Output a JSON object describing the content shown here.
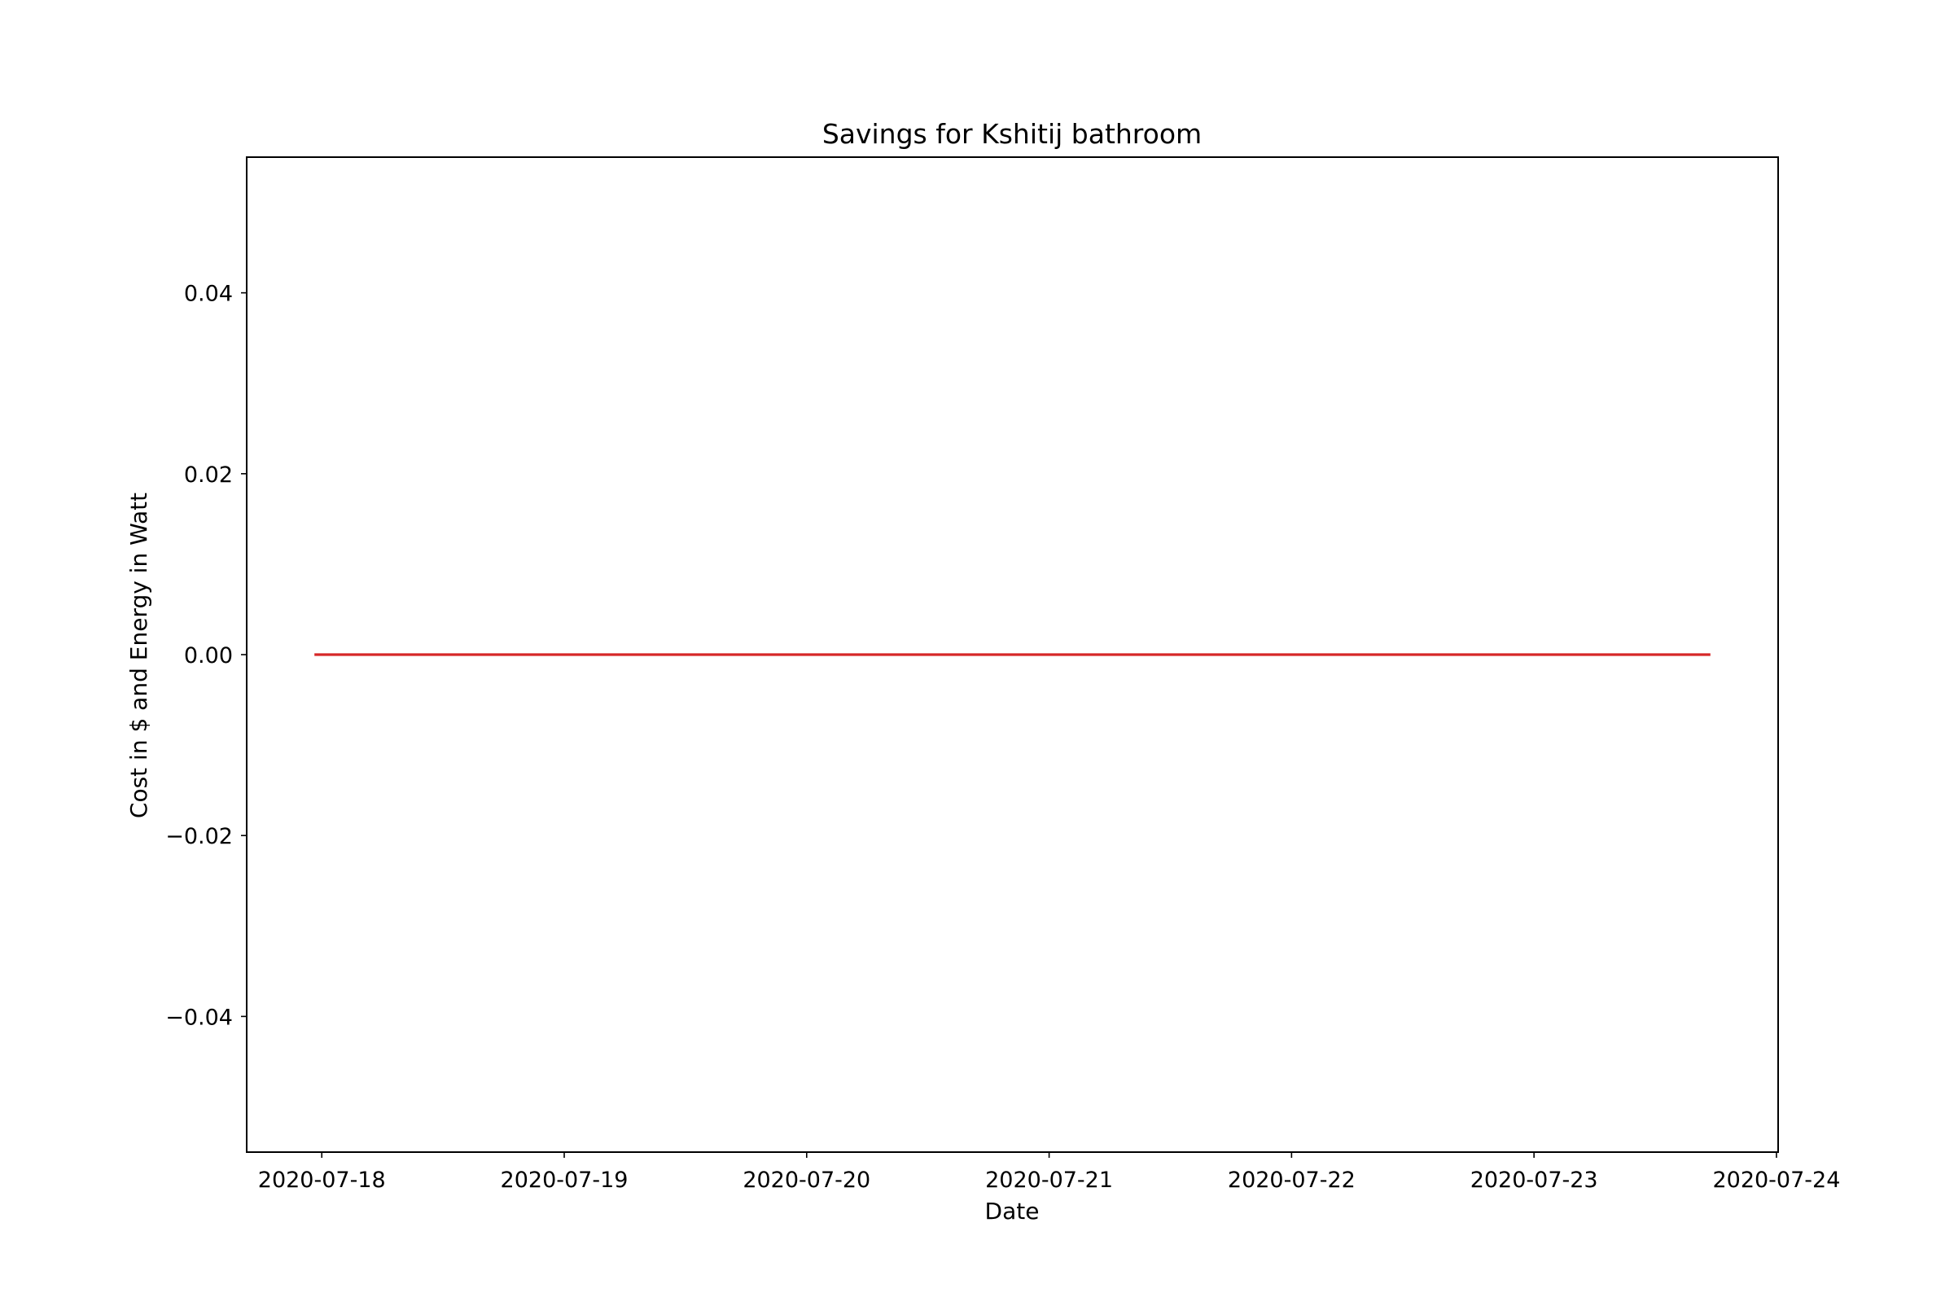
{
  "chart_data": {
    "type": "line",
    "title": "Savings for Kshitij bathroom",
    "xlabel": "Date",
    "ylabel": "Cost in $ and Energy in Watt",
    "x_ticks": [
      "2020-07-18",
      "2020-07-19",
      "2020-07-20",
      "2020-07-21",
      "2020-07-22",
      "2020-07-23",
      "2020-07-24"
    ],
    "y_ticks": [
      "−0.04",
      "−0.02",
      "0.00",
      "0.02",
      "0.04"
    ],
    "xlim": [
      "2020-07-17 16:34",
      "2020-07-24 00:10"
    ],
    "ylim": [
      -0.055,
      0.055
    ],
    "grid": false,
    "legend": "none",
    "series": [
      {
        "color": "#d62728",
        "x": [
          "2020-07-17 23:24",
          "2020-07-23 17:20"
        ],
        "y": [
          0,
          0
        ]
      }
    ]
  }
}
